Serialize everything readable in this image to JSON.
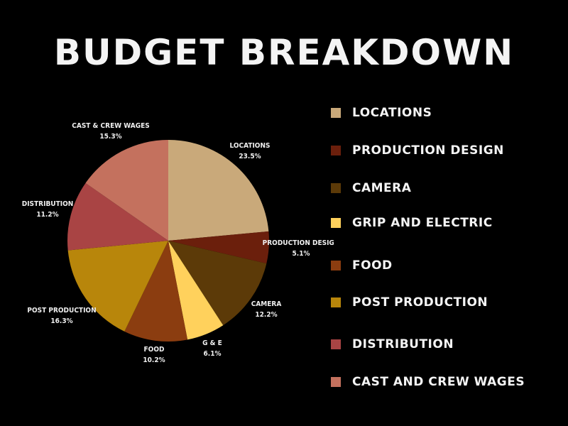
{
  "title": "BUDGET BREAKDOWN",
  "legend": [
    {
      "label": "LOCATIONS",
      "color": "#c9a97a"
    },
    {
      "label": "PRODUCTION DESIGN",
      "color": "#6b1f0c"
    },
    {
      "label": "CAMERA",
      "color": "#5c3a08"
    },
    {
      "label": "GRIP AND ELECTRIC",
      "color": "#ffd15c"
    },
    {
      "label": "FOOD",
      "color": "#8b3d10"
    },
    {
      "label": "POST PRODUCTION",
      "color": "#b8860b"
    },
    {
      "label": "DISTRIBUTION",
      "color": "#a94444"
    },
    {
      "label": "CAST AND CREW WAGES",
      "color": "#c4715e"
    }
  ],
  "chart_data": {
    "type": "pie",
    "title": "BUDGET BREAKDOWN",
    "legend_position": "right",
    "slices": [
      {
        "label": "LOCATIONS",
        "value": 23.5,
        "display": "23.5%",
        "color": "#c9a97a"
      },
      {
        "label": "PRODUCTION DESIGN",
        "value": 5.1,
        "display": "5.1%",
        "color": "#6b1f0c"
      },
      {
        "label": "CAMERA",
        "value": 12.2,
        "display": "12.2%",
        "color": "#5c3a08"
      },
      {
        "label": "G & E",
        "value": 6.1,
        "display": "6.1%",
        "color": "#ffd15c"
      },
      {
        "label": "FOOD",
        "value": 10.2,
        "display": "10.2%",
        "color": "#8b3d10"
      },
      {
        "label": "POST PRODUCTION",
        "value": 16.3,
        "display": "16.3%",
        "color": "#b8860b"
      },
      {
        "label": "DISTRIBUTION",
        "value": 11.2,
        "display": "11.2%",
        "color": "#a94444"
      },
      {
        "label": "CAST & CREW WAGES",
        "value": 15.3,
        "display": "15.3%",
        "color": "#c4715e"
      }
    ]
  }
}
